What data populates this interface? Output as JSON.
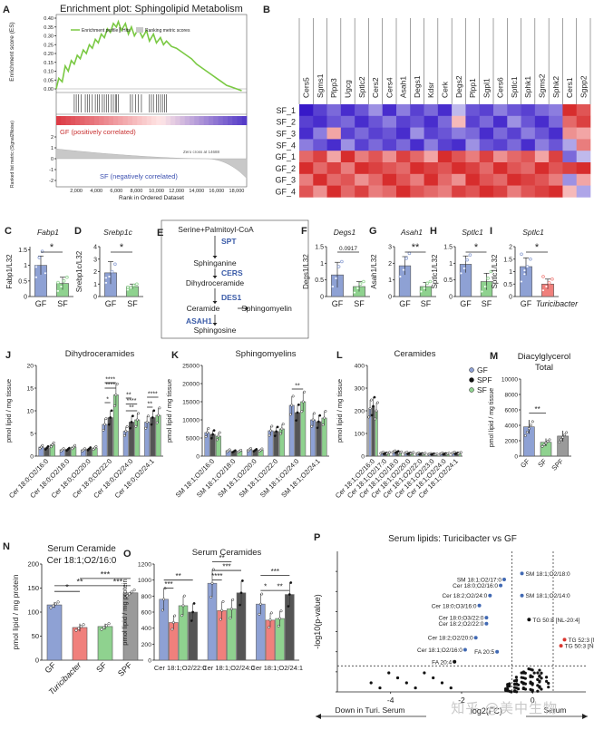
{
  "figure": {
    "panel_letters": [
      "A",
      "B",
      "C",
      "D",
      "E",
      "F",
      "G",
      "H",
      "I",
      "J",
      "K",
      "L",
      "M",
      "N",
      "O",
      "P"
    ],
    "watermark": "知乎 @美中生物"
  },
  "chart_data": [
    {
      "panel": "A",
      "type": "line",
      "title": "Enrichment plot: Sphingolipid Metabolism",
      "ylabel": "Enrichment score (ES)",
      "ylabel2": "Ranked list metric (Signal2Noise)",
      "xlabel": "Rank in Ordered Dataset",
      "ylim": [
        0,
        0.4
      ],
      "yticks": [
        0,
        0.05,
        0.1,
        0.15,
        0.2,
        0.25,
        0.3,
        0.35,
        0.4
      ],
      "xlim": [
        0,
        19000
      ],
      "xticks": [
        2000,
        4000,
        6000,
        8000,
        10000,
        12000,
        14000,
        16000,
        18000
      ],
      "metric_yticks": [
        2,
        1,
        0,
        -1,
        -2
      ],
      "es_x": [
        0,
        250,
        600,
        900,
        1200,
        1500,
        1800,
        2100,
        2400,
        2700,
        3000,
        3300,
        3600,
        3900,
        4200,
        4500,
        4800,
        5100,
        5400,
        5700,
        6000,
        6200,
        6500,
        6900,
        7200,
        7500,
        7800,
        8200,
        8600,
        9000,
        9300,
        9700,
        10000,
        10400,
        10700,
        11000,
        11500,
        12000,
        12500,
        13000,
        13500,
        14000,
        14500,
        15000,
        15500,
        16000,
        16500,
        17000,
        17500,
        18000,
        18500
      ],
      "es_y": [
        0,
        0.06,
        0.04,
        0.13,
        0.1,
        0.16,
        0.14,
        0.19,
        0.17,
        0.22,
        0.2,
        0.25,
        0.23,
        0.28,
        0.26,
        0.31,
        0.29,
        0.34,
        0.32,
        0.37,
        0.35,
        0.38,
        0.33,
        0.37,
        0.31,
        0.35,
        0.3,
        0.34,
        0.29,
        0.33,
        0.27,
        0.31,
        0.26,
        0.29,
        0.25,
        0.27,
        0.24,
        0.23,
        0.21,
        0.19,
        0.17,
        0.14,
        0.12,
        0.1,
        0.08,
        0.06,
        0.04,
        0.02,
        0.01,
        0.0,
        -0.01
      ],
      "hits": [
        1800,
        2000,
        2200,
        2500,
        2900,
        3100,
        3300,
        3600,
        3900,
        4100,
        4300,
        4600,
        4800,
        5000,
        5200,
        5500,
        5700,
        5900,
        6000,
        6200,
        7400,
        7600,
        7900,
        8200,
        8500,
        9300,
        9500,
        9700,
        10000,
        10200,
        10400,
        10600,
        10800,
        11000
      ],
      "zero_cross_label": "Zero cross at 14688",
      "pos_label": "GF (positively correlated)",
      "neg_label": "SF (negatively correlated)",
      "legend": [
        "Enrichment profile",
        "Hits",
        "Ranking metric scores"
      ]
    },
    {
      "panel": "B",
      "type": "heatmap",
      "genes": [
        "Cers5",
        "Sgms1",
        "Plpp3",
        "Ugcg",
        "Sptlc2",
        "Cers2",
        "Cers4",
        "Asah1",
        "Degs1",
        "Kdsr",
        "Cerk",
        "Degs2",
        "Plpp1",
        "Sgpl1",
        "Cers6",
        "Sptlc1",
        "Sphk1",
        "Sgms2",
        "Sphk2",
        "Cers1",
        "Sgpp2"
      ],
      "samples": [
        "SF_1",
        "SF_2",
        "SF_3",
        "SF_4",
        "GF_1",
        "GF_2",
        "GF_3",
        "GF_4"
      ],
      "values": [
        [
          -1.0,
          -0.8,
          -0.6,
          -0.9,
          -0.7,
          -0.4,
          -0.9,
          -0.5,
          -0.8,
          -0.6,
          -0.9,
          -0.2,
          -0.7,
          -0.8,
          -0.5,
          -0.7,
          -0.8,
          -0.6,
          -0.5,
          0.9,
          0.7
        ],
        [
          -0.8,
          -0.9,
          -0.7,
          -0.6,
          -0.9,
          -0.7,
          -0.5,
          -0.8,
          -0.7,
          -0.9,
          -0.6,
          0.2,
          -0.8,
          -0.6,
          -0.9,
          -0.4,
          -0.7,
          -0.9,
          -0.6,
          0.6,
          0.8
        ],
        [
          -0.9,
          -0.5,
          0.3,
          -0.8,
          -0.6,
          -0.8,
          -0.7,
          -0.9,
          -0.4,
          -0.8,
          -0.7,
          -0.5,
          -0.6,
          -0.9,
          -0.6,
          -0.8,
          -0.5,
          -0.7,
          -0.9,
          0.4,
          0.3
        ],
        [
          -0.5,
          -0.7,
          -0.9,
          -0.4,
          -0.8,
          -0.6,
          -0.8,
          -0.6,
          -0.9,
          -0.5,
          -0.8,
          -0.9,
          -0.4,
          -0.7,
          -0.8,
          -0.6,
          -0.9,
          -0.5,
          -0.7,
          -0.3,
          0.5
        ],
        [
          0.6,
          0.8,
          0.3,
          0.9,
          0.5,
          0.7,
          0.4,
          0.8,
          0.6,
          0.3,
          0.9,
          0.7,
          0.5,
          0.8,
          0.4,
          0.6,
          0.7,
          0.3,
          0.8,
          -0.6,
          -0.2
        ],
        [
          0.9,
          0.6,
          0.8,
          0.5,
          0.9,
          0.8,
          0.7,
          0.6,
          0.9,
          0.8,
          0.7,
          0.9,
          0.8,
          0.6,
          0.9,
          0.7,
          0.6,
          0.9,
          0.7,
          0.8,
          0.9
        ],
        [
          0.5,
          0.9,
          0.6,
          0.7,
          0.4,
          0.6,
          0.9,
          0.7,
          0.5,
          0.9,
          0.6,
          0.4,
          0.9,
          0.7,
          0.6,
          0.9,
          0.8,
          0.7,
          0.5,
          -0.4,
          0.3
        ],
        [
          0.7,
          0.4,
          0.9,
          0.6,
          0.8,
          0.5,
          0.6,
          0.9,
          0.7,
          0.6,
          0.5,
          0.8,
          0.7,
          0.9,
          0.8,
          0.5,
          0.7,
          0.8,
          0.9,
          0.2,
          -0.3
        ]
      ]
    },
    {
      "panel": "C",
      "type": "bar",
      "gene": "Fabp1",
      "ylabel": "Fabp1/L32",
      "categories": [
        "GF",
        "SF"
      ],
      "values": [
        1.0,
        0.42
      ],
      "err": [
        0.3,
        0.2
      ],
      "colors": [
        "#8ea1d4",
        "#8fd28f"
      ],
      "sig": "*",
      "ylim": [
        0,
        1.6
      ],
      "yticks": [
        0,
        0.5,
        1.0,
        1.5
      ],
      "points": [
        [
          0.62,
          1.25,
          1.45,
          0.75,
          0.95
        ],
        [
          0.18,
          0.32,
          0.5,
          0.62,
          0.45
        ]
      ]
    },
    {
      "panel": "D",
      "type": "bar",
      "gene": "Srebp1c",
      "ylabel": "Srebp1c/L32",
      "categories": [
        "GF",
        "SF"
      ],
      "values": [
        1.9,
        0.8
      ],
      "err": [
        0.9,
        0.2
      ],
      "colors": [
        "#8ea1d4",
        "#8fd28f"
      ],
      "sig": "*",
      "ylim": [
        0,
        4
      ],
      "yticks": [
        0,
        1,
        2,
        3,
        4
      ],
      "points": [
        [
          1.1,
          1.6,
          2.0,
          2.6,
          1.5
        ],
        [
          0.55,
          0.7,
          0.9,
          1.0,
          0.75
        ]
      ]
    },
    {
      "panel": "E",
      "type": "pathway",
      "nodes": [
        "Serine+Palmitoyl-CoA",
        "Sphinganine",
        "Dihydroceramide",
        "Ceramide",
        "Sphingomyelin",
        "Sphingosine"
      ],
      "enzymes": [
        "SPT",
        "CERS",
        "DES1",
        "ASAH1"
      ]
    },
    {
      "panel": "F",
      "type": "bar",
      "gene": "Degs1",
      "ylabel": "Degs1/L32",
      "categories": [
        "GF",
        "SF"
      ],
      "values": [
        0.65,
        0.3
      ],
      "err": [
        0.38,
        0.15
      ],
      "colors": [
        "#8ea1d4",
        "#8fd28f"
      ],
      "sig": "0.0917",
      "ylim": [
        0,
        1.5
      ],
      "yticks": [
        0,
        0.5,
        1.0,
        1.5
      ],
      "points": [
        [
          0.3,
          0.55,
          0.9,
          1.05
        ],
        [
          0.12,
          0.25,
          0.38,
          0.45
        ]
      ]
    },
    {
      "panel": "G",
      "type": "bar",
      "gene": "Asah1",
      "ylabel": "Asah1/L32",
      "categories": [
        "GF",
        "SF"
      ],
      "values": [
        1.85,
        0.6
      ],
      "err": [
        0.55,
        0.25
      ],
      "colors": [
        "#8ea1d4",
        "#8fd28f"
      ],
      "sig": "**",
      "ylim": [
        0,
        3
      ],
      "yticks": [
        0,
        1,
        2,
        3
      ],
      "points": [
        [
          1.2,
          1.6,
          2.3,
          2.6
        ],
        [
          0.3,
          0.5,
          0.8,
          0.9
        ]
      ]
    },
    {
      "panel": "H",
      "type": "bar",
      "gene": "Sptlc1",
      "ylabel": "Sptlc1/L32",
      "categories": [
        "GF",
        "SF"
      ],
      "values": [
        0.97,
        0.45
      ],
      "err": [
        0.25,
        0.25
      ],
      "colors": [
        "#8ea1d4",
        "#8fd28f"
      ],
      "sig": "*",
      "ylim": [
        0,
        1.5
      ],
      "yticks": [
        0,
        0.5,
        1.0,
        1.5
      ],
      "points": [
        [
          0.7,
          0.85,
          1.1,
          1.25
        ],
        [
          0.15,
          0.3,
          0.55,
          0.75
        ]
      ]
    },
    {
      "panel": "I",
      "type": "bar",
      "gene": "Sptlc1",
      "ylabel": "Sptlc1/L32",
      "categories": [
        "GF",
        "Turicibacter"
      ],
      "values": [
        1.2,
        0.5
      ],
      "err": [
        0.35,
        0.2
      ],
      "colors": [
        "#8ea1d4",
        "#f0807c"
      ],
      "sig": "*",
      "ylim": [
        0,
        2
      ],
      "yticks": [
        0,
        0.5,
        1.0,
        1.5,
        2.0
      ],
      "points": [
        [
          0.6,
          0.9,
          1.2,
          1.5,
          1.7,
          1.05
        ],
        [
          0.25,
          0.4,
          0.55,
          0.7,
          0.8
        ]
      ]
    },
    {
      "panel": "J",
      "type": "grouped-bar",
      "title": "Dihydroceramides",
      "ylabel": "pmol lipid / mg tissue",
      "ylim": [
        0,
        20
      ],
      "yticks": [
        0,
        5,
        10,
        15,
        20
      ],
      "categories": [
        "Cer 18:0;O2/16:0",
        "Cer 18:0;O2/18:0",
        "Cer 18:0;O2/20:0",
        "Cer 18:0;O2/22:0",
        "Cer 18:0;O2/24:0",
        "Cer 18:0;O2/24:1"
      ],
      "series": [
        {
          "name": "GF",
          "values": [
            2.0,
            1.4,
            1.4,
            7.0,
            5.5,
            7.5
          ]
        },
        {
          "name": "SPF",
          "values": [
            1.8,
            1.5,
            1.6,
            8.5,
            7.5,
            8.5
          ]
        },
        {
          "name": "SF",
          "values": [
            2.5,
            2.0,
            1.8,
            13.5,
            8.0,
            9.0
          ]
        }
      ],
      "sig_labels": [
        "****",
        "****",
        "*",
        "**",
        "****",
        "**",
        "****",
        "**"
      ]
    },
    {
      "panel": "K",
      "type": "grouped-bar",
      "title": "Sphingomyelins",
      "ylabel": "pmol lipid / mg tissue",
      "ylim": [
        0,
        25000
      ],
      "yticks": [
        0,
        5000,
        10000,
        15000,
        20000,
        25000
      ],
      "categories": [
        "SM 18:1;O2/16:0",
        "SM 18:1;O2/18:0",
        "SM 18:1;O2/20:0",
        "SM 18:1;O2/22:0",
        "SM 18:1;O2/24:0",
        "SM 18:1;O2/24:1"
      ],
      "series": [
        {
          "name": "GF",
          "values": [
            6500,
            1500,
            1800,
            7000,
            14000,
            10000
          ]
        },
        {
          "name": "SPF",
          "values": [
            6000,
            1300,
            1600,
            6800,
            12000,
            9500
          ]
        },
        {
          "name": "SF",
          "values": [
            5500,
            1400,
            1700,
            7500,
            15000,
            10500
          ]
        }
      ],
      "sig_labels": [
        "**"
      ]
    },
    {
      "panel": "L",
      "type": "grouped-bar",
      "title": "Ceramides",
      "ylabel": "pmol lipid / mg tissue",
      "ylim": [
        0,
        400
      ],
      "yticks": [
        0,
        100,
        200,
        300,
        400
      ],
      "categories": [
        "Cer 18:1;O2/16:0",
        "Cer 18:1;O2/17:0",
        "Cer 18:1;O2/18:0",
        "Cer 18:1;O2/20:0",
        "Cer 18:1;O2/22:0",
        "Cer 18:1;O2/23:0",
        "Cer 18:1;O2/24:0",
        "Cer 18:1;O2/24:1"
      ],
      "series": [
        {
          "name": "GF",
          "values": [
            210,
            15,
            20,
            15,
            12,
            10,
            12,
            15
          ]
        },
        {
          "name": "SPF",
          "values": [
            220,
            12,
            18,
            12,
            10,
            9,
            10,
            12
          ]
        },
        {
          "name": "SF",
          "values": [
            200,
            14,
            16,
            14,
            11,
            8,
            11,
            14
          ]
        }
      ],
      "legend": [
        "GF",
        "SPF",
        "SF"
      ]
    },
    {
      "panel": "M",
      "type": "bar",
      "title": "Diacylglycerol",
      "subtitle": "Total",
      "ylabel": "pmol lipid / mg tissue",
      "categories": [
        "GF",
        "SF",
        "SPF"
      ],
      "values": [
        3800,
        1800,
        2600
      ],
      "err": [
        900,
        500,
        700
      ],
      "colors": [
        "#8ea1d4",
        "#8fd28f",
        "#9a9a9a"
      ],
      "sig": "**",
      "ylim": [
        0,
        10000
      ],
      "yticks": [
        0,
        2000,
        4000,
        6000,
        8000,
        10000
      ]
    },
    {
      "panel": "N",
      "type": "bar",
      "title": "Serum Ceramide",
      "subtitle": "Cer 18:1;O2/16:0",
      "ylabel": "pmol lipid / mg protein",
      "categories": [
        "GF",
        "Turicibacter",
        "SF",
        "SPF"
      ],
      "values": [
        115,
        68,
        70,
        140
      ],
      "err": [
        6,
        8,
        6,
        3
      ],
      "colors": [
        "#8ea1d4",
        "#f0807c",
        "#8fd28f",
        "#9a9a9a"
      ],
      "sig_labels": [
        "*",
        "**",
        "***",
        "***"
      ],
      "ylim": [
        0,
        200
      ],
      "yticks": [
        0,
        50,
        100,
        150,
        200
      ]
    },
    {
      "panel": "O",
      "type": "grouped-bar",
      "title": "Serum Ceramides",
      "ylabel": "pmol lipid / mg protein",
      "ylim": [
        0,
        1200
      ],
      "yticks": [
        0,
        200,
        400,
        600,
        800,
        1000,
        1200
      ],
      "categories": [
        "Cer 18:1;O2/22:0",
        "Cer 18:1;O2/24:0",
        "Cer 18:1;O2/24:1"
      ],
      "series": [
        {
          "name": "GF",
          "values": [
            760,
            960,
            700
          ]
        },
        {
          "name": "Turicibacter",
          "values": [
            470,
            620,
            500
          ]
        },
        {
          "name": "SF",
          "values": [
            680,
            640,
            520
          ]
        },
        {
          "name": "SPF",
          "values": [
            600,
            840,
            820
          ]
        }
      ],
      "sig_labels": [
        "***",
        "**",
        "****",
        "***",
        "**",
        "*",
        "***",
        "**"
      ]
    },
    {
      "panel": "P",
      "type": "scatter",
      "title": "Serum lipids: Turicibacter vs GF",
      "xlabel": "log2(FC)",
      "ylabel": "-log10(p-value)",
      "xlim": [
        -5.5,
        1.5
      ],
      "ylim": [
        0,
        7
      ],
      "xticks": [
        -4,
        -2,
        0
      ],
      "yticks": [
        0,
        1,
        2,
        3,
        4,
        5,
        6
      ],
      "labeled_points": [
        {
          "label": "SM 18:1;O2/18:0",
          "x": -0.3,
          "y": 5.9,
          "color": "blue"
        },
        {
          "label": "SM 18:1;O2/17:0",
          "x": -0.8,
          "y": 5.6,
          "color": "blue"
        },
        {
          "label": "Cer 18:0;O2/16:0",
          "x": -0.9,
          "y": 5.3,
          "color": "blue"
        },
        {
          "label": "SM 18:1;O2/14:0",
          "x": -0.3,
          "y": 4.8,
          "color": "blue"
        },
        {
          "label": "Cer 18:2;O2/24:0",
          "x": -1.2,
          "y": 4.8,
          "color": "blue"
        },
        {
          "label": "Cer 18:0;O3/16:0",
          "x": -1.5,
          "y": 4.3,
          "color": "blue"
        },
        {
          "label": "Cer 18:0;O3/22:0",
          "x": -1.3,
          "y": 3.7,
          "color": "blue"
        },
        {
          "label": "TG 50:8 [NL-20:4]",
          "x": -0.1,
          "y": 3.6,
          "color": "black"
        },
        {
          "label": "Cer 18:2;O2/22:0",
          "x": -1.3,
          "y": 3.4,
          "color": "blue"
        },
        {
          "label": "Cer 18:2;O2/20:0",
          "x": -1.6,
          "y": 2.7,
          "color": "blue"
        },
        {
          "label": "TG 52:3 [NL-16:1]",
          "x": 0.9,
          "y": 2.6,
          "color": "red"
        },
        {
          "label": "TG 50:3 [NL-16:1]",
          "x": 0.8,
          "y": 2.3,
          "color": "red"
        },
        {
          "label": "Cer 18:1;O2/16:0",
          "x": -1.9,
          "y": 2.1,
          "color": "blue"
        },
        {
          "label": "FA 20:5",
          "x": -1.0,
          "y": 2.0,
          "color": "blue"
        },
        {
          "label": "FA 20:4",
          "x": -2.2,
          "y": 1.5,
          "color": "black"
        }
      ],
      "threshold_y": 1.3,
      "threshold_x": [
        -0.58,
        0.58
      ],
      "bottom_left": "Down in Turi. Serum",
      "bottom_right": "Serum"
    }
  ]
}
